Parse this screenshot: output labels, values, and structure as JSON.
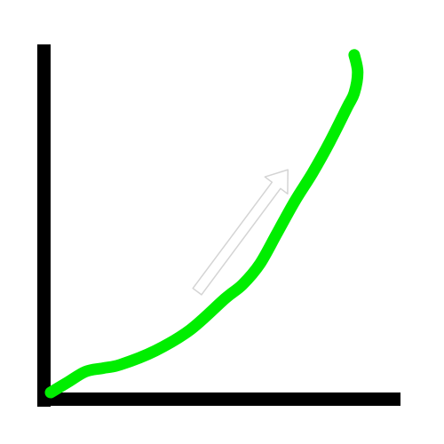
{
  "colors": {
    "background": "#ffffff",
    "axis": "#000000",
    "curve": "#00ee00",
    "arrow_fill": "#ffffff",
    "arrow_stroke": "#d4d4d4"
  },
  "chart_data": {
    "type": "line",
    "title": "",
    "xlabel": "",
    "ylabel": "",
    "xlim": [
      0,
      100
    ],
    "ylim": [
      0,
      100
    ],
    "grid": false,
    "legend": "none",
    "series": [
      {
        "x": [
          0,
          5,
          10,
          15,
          20,
          30,
          40,
          50,
          55,
          60,
          65,
          70,
          75,
          80,
          85,
          87,
          88,
          87
        ],
        "y": [
          0,
          3,
          6,
          7,
          8,
          12,
          18,
          27,
          31,
          37,
          46,
          55,
          63,
          72,
          82,
          86,
          92,
          97
        ]
      }
    ],
    "annotations": [
      {
        "kind": "arrow",
        "direction": "up-right",
        "from": [
          42,
          29
        ],
        "to": [
          68,
          64
        ]
      }
    ]
  }
}
